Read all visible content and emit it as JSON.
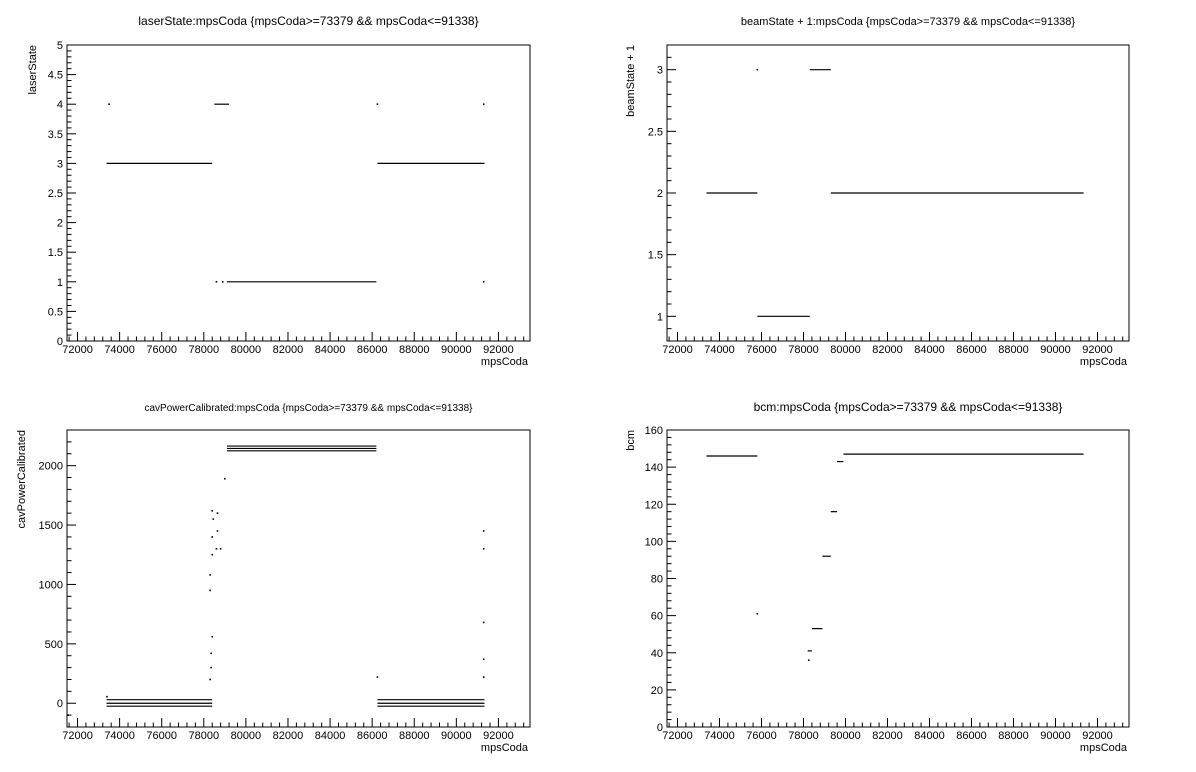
{
  "chart_data": [
    {
      "type": "scatter",
      "title": "laserState:mpsCoda {mpsCoda>=73379 && mpsCoda<=91338}",
      "xlabel": "mpsCoda",
      "ylabel": "laserState",
      "xlim": [
        71500,
        93500
      ],
      "ylim": [
        0,
        5
      ],
      "xticks": [
        72000,
        74000,
        76000,
        78000,
        80000,
        82000,
        84000,
        86000,
        88000,
        90000,
        92000
      ],
      "yticks": [
        0,
        0.5,
        1,
        1.5,
        2,
        2.5,
        3,
        3.5,
        4,
        4.5,
        5
      ],
      "ytick_labels": [
        "0",
        "0.5",
        "1",
        "1.5",
        "2",
        "2.5",
        "3",
        "3.5",
        "4",
        "4.5",
        "5"
      ],
      "grid": false,
      "segments": [
        {
          "x0": 73379,
          "x1": 78400,
          "y": 3
        },
        {
          "x0": 78500,
          "x1": 79200,
          "y": 4
        },
        {
          "x0": 79100,
          "x1": 86200,
          "y": 1
        },
        {
          "x0": 86250,
          "x1": 91338,
          "y": 3
        }
      ],
      "points": [
        {
          "x": 73500,
          "y": 4
        },
        {
          "x": 78600,
          "y": 1
        },
        {
          "x": 78900,
          "y": 1
        },
        {
          "x": 86250,
          "y": 4
        },
        {
          "x": 91300,
          "y": 4
        },
        {
          "x": 91300,
          "y": 1
        }
      ]
    },
    {
      "type": "scatter",
      "title": "beamState + 1:mpsCoda {mpsCoda>=73379 && mpsCoda<=91338}",
      "xlabel": "mpsCoda",
      "ylabel": "beamState + 1",
      "xlim": [
        71500,
        93500
      ],
      "ylim": [
        0.8,
        3.2
      ],
      "xticks": [
        72000,
        74000,
        76000,
        78000,
        80000,
        82000,
        84000,
        86000,
        88000,
        90000,
        92000
      ],
      "yticks": [
        1,
        1.5,
        2,
        2.5,
        3
      ],
      "ytick_labels": [
        "1",
        "1.5",
        "2",
        "2.5",
        "3"
      ],
      "grid": false,
      "segments": [
        {
          "x0": 73379,
          "x1": 75800,
          "y": 2
        },
        {
          "x0": 75800,
          "x1": 78300,
          "y": 1
        },
        {
          "x0": 78300,
          "x1": 79300,
          "y": 3
        },
        {
          "x0": 79300,
          "x1": 91338,
          "y": 2
        }
      ],
      "points": [
        {
          "x": 75800,
          "y": 3
        }
      ]
    },
    {
      "type": "scatter",
      "title": "cavPowerCalibrated:mpsCoda {mpsCoda>=73379 && mpsCoda<=91338}",
      "xlabel": "mpsCoda",
      "ylabel": "cavPowerCalibrated",
      "xlim": [
        71500,
        93500
      ],
      "ylim": [
        -200,
        2300
      ],
      "xticks": [
        72000,
        74000,
        76000,
        78000,
        80000,
        82000,
        84000,
        86000,
        88000,
        90000,
        92000
      ],
      "yticks": [
        0,
        500,
        1000,
        1500,
        2000
      ],
      "ytick_labels": [
        "0",
        "500",
        "1000",
        "1500",
        "2000"
      ],
      "grid": false,
      "segments": [
        {
          "x0": 73379,
          "x1": 78400,
          "y": 30
        },
        {
          "x0": 73379,
          "x1": 78400,
          "y": 0
        },
        {
          "x0": 73379,
          "x1": 78400,
          "y": -25
        },
        {
          "x0": 79100,
          "x1": 86200,
          "y": 2165
        },
        {
          "x0": 79100,
          "x1": 86200,
          "y": 2145
        },
        {
          "x0": 79100,
          "x1": 86200,
          "y": 2125
        },
        {
          "x0": 86250,
          "x1": 91338,
          "y": 30
        },
        {
          "x0": 86250,
          "x1": 91338,
          "y": 0
        },
        {
          "x0": 86250,
          "x1": 91338,
          "y": -25
        }
      ],
      "points": [
        {
          "x": 73400,
          "y": 55
        },
        {
          "x": 78300,
          "y": 200
        },
        {
          "x": 78350,
          "y": 300
        },
        {
          "x": 78350,
          "y": 420
        },
        {
          "x": 78400,
          "y": 560
        },
        {
          "x": 78300,
          "y": 950
        },
        {
          "x": 78300,
          "y": 1080
        },
        {
          "x": 78400,
          "y": 1250
        },
        {
          "x": 78400,
          "y": 1400
        },
        {
          "x": 78450,
          "y": 1550
        },
        {
          "x": 78400,
          "y": 1620
        },
        {
          "x": 78600,
          "y": 1300
        },
        {
          "x": 78650,
          "y": 1450
        },
        {
          "x": 78650,
          "y": 1600
        },
        {
          "x": 78800,
          "y": 1300
        },
        {
          "x": 79000,
          "y": 1890
        },
        {
          "x": 86250,
          "y": 220
        },
        {
          "x": 91300,
          "y": 680
        },
        {
          "x": 91300,
          "y": 370
        },
        {
          "x": 91300,
          "y": 220
        },
        {
          "x": 91300,
          "y": 1300
        },
        {
          "x": 91300,
          "y": 1450
        },
        {
          "x": 71550,
          "y": -100
        }
      ]
    },
    {
      "type": "scatter",
      "title": "bcm:mpsCoda {mpsCoda>=73379 && mpsCoda<=91338}",
      "xlabel": "mpsCoda",
      "ylabel": "bcm",
      "xlim": [
        71500,
        93500
      ],
      "ylim": [
        0,
        160
      ],
      "xticks": [
        72000,
        74000,
        76000,
        78000,
        80000,
        82000,
        84000,
        86000,
        88000,
        90000,
        92000
      ],
      "yticks": [
        0,
        20,
        40,
        60,
        80,
        100,
        120,
        140,
        160
      ],
      "ytick_labels": [
        "0",
        "20",
        "40",
        "60",
        "80",
        "100",
        "120",
        "140",
        "160"
      ],
      "grid": false,
      "segments": [
        {
          "x0": 73379,
          "x1": 75800,
          "y": 146
        },
        {
          "x0": 78200,
          "x1": 78400,
          "y": 41
        },
        {
          "x0": 78400,
          "x1": 78900,
          "y": 53
        },
        {
          "x0": 78900,
          "x1": 79300,
          "y": 92
        },
        {
          "x0": 79300,
          "x1": 79600,
          "y": 116
        },
        {
          "x0": 79600,
          "x1": 79900,
          "y": 143
        },
        {
          "x0": 79900,
          "x1": 91338,
          "y": 147
        }
      ],
      "points": [
        {
          "x": 75800,
          "y": 61
        },
        {
          "x": 78250,
          "y": 36
        }
      ]
    }
  ]
}
